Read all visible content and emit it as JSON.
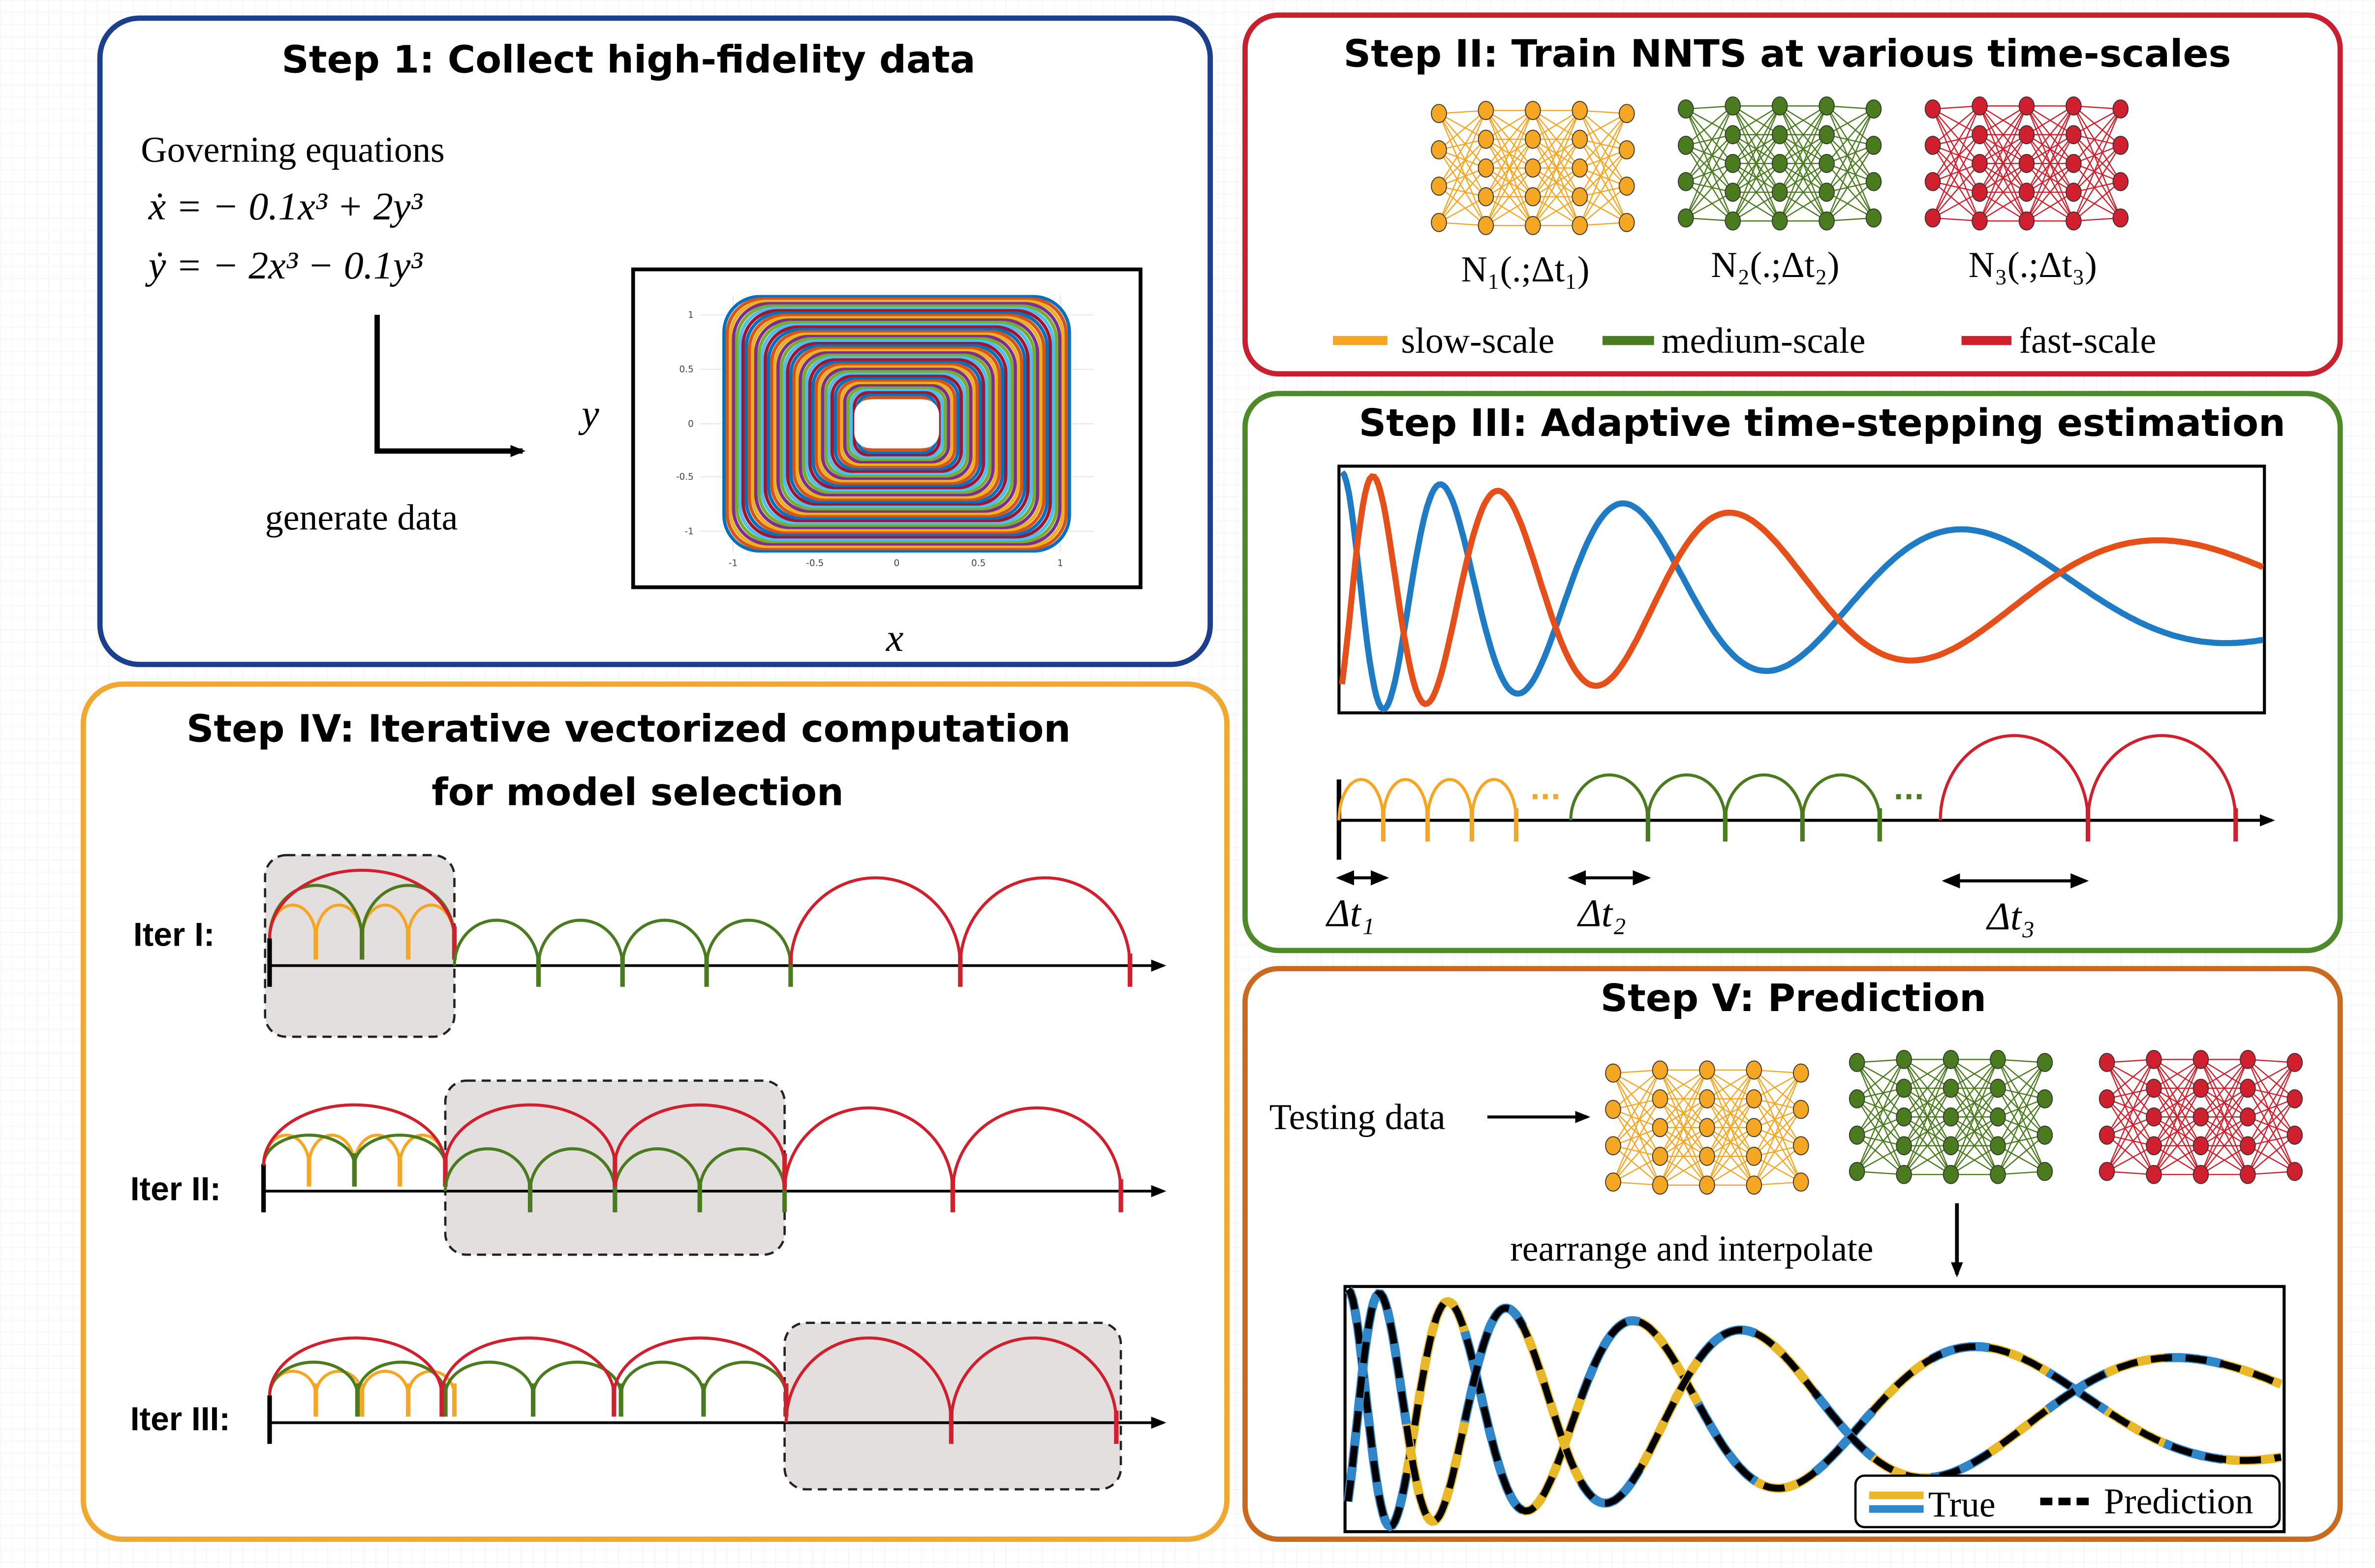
{
  "step1": {
    "title": "Step 1: Collect high-fidelity data",
    "equations_label": "Governing equations",
    "equations": [
      "ẋ = − 0.1x³ + 2y³",
      "ẏ = − 2x³ − 0.1y³"
    ],
    "arrow_label": "generate data",
    "plot": {
      "x_label": "x",
      "y_label": "y",
      "x_ticks": [
        "-1",
        "-0.5",
        "0",
        "0.5",
        "1"
      ],
      "y_ticks": [
        "1",
        "0.5",
        "0",
        "-0.5",
        "-1"
      ]
    }
  },
  "step2": {
    "title": "Step II: Train NNTS at various time-scales",
    "networks": [
      "N₁(.;Δt₁)",
      "N₂(.;Δt₂)",
      "N₃(.;Δt₃)"
    ],
    "legend": [
      "slow-scale",
      "medium-scale",
      "fast-scale"
    ]
  },
  "step3": {
    "title": "Step III: Adaptive time-stepping estimation",
    "ellipses": [
      "...",
      "..."
    ],
    "steps": [
      "Δt₁",
      "Δt₂",
      "Δt₃"
    ]
  },
  "step4": {
    "title": [
      "Step IV: Iterative vectorized computation",
      "for model selection"
    ],
    "iterations": [
      "Iter I:",
      "Iter II:",
      "Iter III:"
    ]
  },
  "step5": {
    "title": "Step V: Prediction",
    "input_label": "Testing data",
    "process_label": "rearrange and interpolate",
    "legend": [
      "True",
      "Prediction"
    ]
  }
}
